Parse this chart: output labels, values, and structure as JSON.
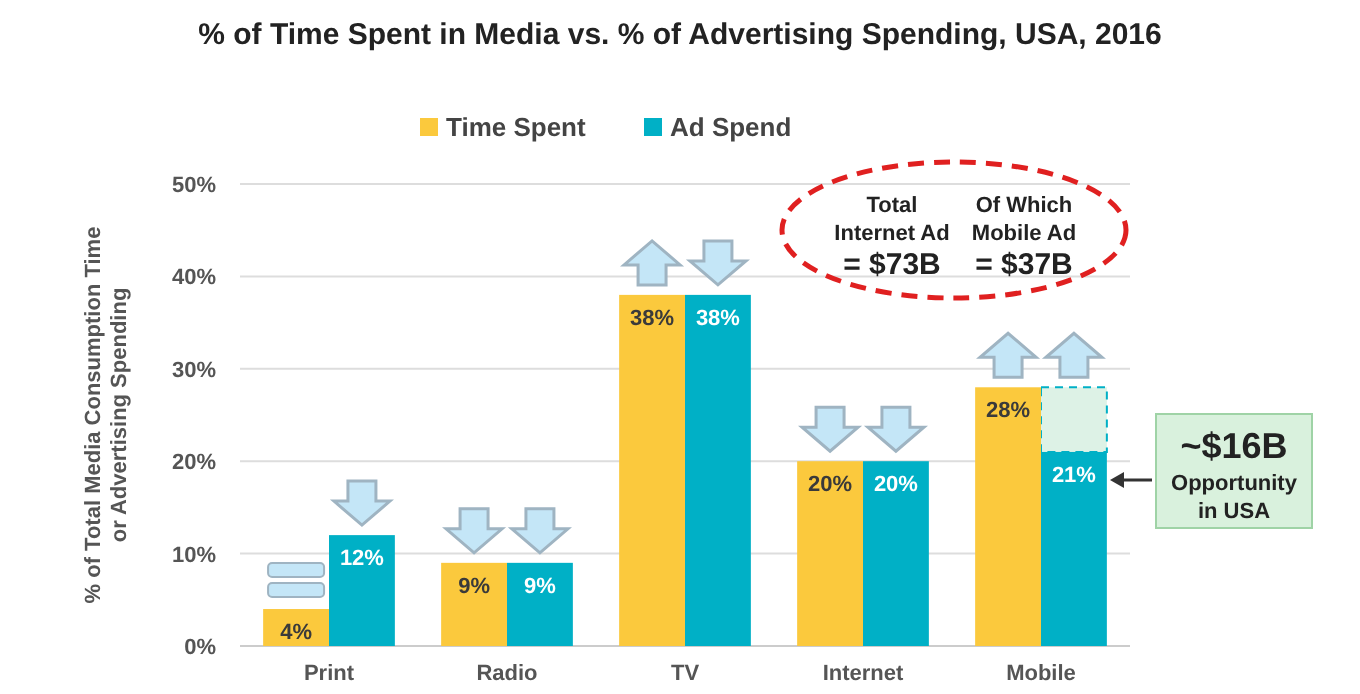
{
  "chart_data": {
    "type": "bar",
    "title": "% of Time Spent in Media vs. % of Advertising Spending, USA, 2016",
    "ylabel": "% of Total Media Consumption Time\nor Advertising Spending",
    "categories": [
      "Print",
      "Radio",
      "TV",
      "Internet",
      "Mobile"
    ],
    "series": [
      {
        "name": "Time Spent",
        "color": "#fbc93d",
        "values": [
          4,
          9,
          38,
          20,
          28
        ],
        "value_labels": [
          "4%",
          "9%",
          "38%",
          "20%",
          "28%"
        ]
      },
      {
        "name": "Ad Spend",
        "color": "#00b0c6",
        "values": [
          12,
          9,
          38,
          20,
          21
        ],
        "value_labels": [
          "12%",
          "9%",
          "38%",
          "20%",
          "21%"
        ]
      }
    ],
    "ylim": [
      0,
      50
    ],
    "yticks": [
      {
        "value": 0,
        "label": "0%"
      },
      {
        "value": 10,
        "label": "10%"
      },
      {
        "value": 20,
        "label": "20%"
      },
      {
        "value": 30,
        "label": "30%"
      },
      {
        "value": 40,
        "label": "40%"
      },
      {
        "value": 50,
        "label": "50%"
      }
    ],
    "grid": "y",
    "legend": "top",
    "annotations": [
      "Total\nInternet Ad\n= $73B",
      "Of Which\nMobile Ad\n= $37B",
      "~$16B\nOpportunity\nin USA"
    ]
  }
}
